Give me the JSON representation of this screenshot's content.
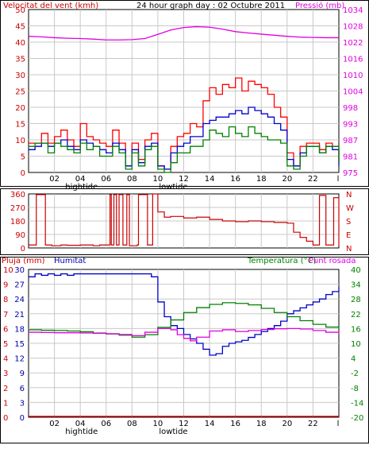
{
  "title": "24 hour graph day : 02 Octubre 2011",
  "colors": {
    "wind": "#dd0000",
    "wind_gust": "#ff0000",
    "wind_avg": "#0000cc",
    "wind_low": "#008000",
    "pressure": "#e000e0",
    "humidity": "#0000cc",
    "temperature": "#008000",
    "dewpoint": "#e000e0",
    "rain": "#cc0000",
    "direction": "#cc0000",
    "axis_text_left": "#cc0000",
    "axis_text_blue": "#0000aa",
    "grid": "#c8c8c8"
  },
  "x_ticks": [
    "02",
    "04",
    "06",
    "08",
    "10",
    "12",
    "14",
    "16",
    "18",
    "20",
    "22",
    "l"
  ],
  "tide_labels": [
    {
      "text": "hightide",
      "hour": 4.1
    },
    {
      "text": "lowtide",
      "hour": 11.2
    }
  ],
  "chart_data": [
    {
      "type": "line",
      "name": "wind-pressure",
      "title": "24 hour graph day : 02 Octubre 2011",
      "left_label": "Velocitat del vent (kmh)",
      "right_label": "Pressió (mb)",
      "xlim": [
        0,
        24
      ],
      "ylim_left": [
        0,
        50
      ],
      "ylim_right": [
        975,
        1034
      ],
      "left_ticks": [
        "0",
        "5",
        "10",
        "15",
        "20",
        "25",
        "30",
        "35",
        "40",
        "45",
        "50"
      ],
      "right_ticks": [
        "975",
        "981",
        "987",
        "993",
        "998",
        "1004",
        "1010",
        "1016",
        "1022",
        "1028",
        "1034"
      ],
      "series": [
        {
          "name": "gust",
          "axis": "left",
          "x": [
            0,
            0.5,
            1,
            1.5,
            2,
            2.5,
            3,
            3.5,
            4,
            4.5,
            5,
            5.5,
            6,
            6.5,
            7,
            7.5,
            8,
            8.5,
            9,
            9.5,
            10,
            10.5,
            11,
            11.5,
            12,
            12.5,
            13,
            13.5,
            14,
            14.5,
            15,
            15.5,
            16,
            16.5,
            17,
            17.5,
            18,
            18.5,
            19,
            19.5,
            20,
            20.5,
            21,
            21.5,
            22,
            22.5,
            23,
            23.5,
            24
          ],
          "y": [
            9,
            9,
            12,
            9,
            11,
            13,
            10,
            8,
            15,
            11,
            10,
            9,
            8,
            13,
            9,
            2,
            9,
            4,
            10,
            12,
            2,
            1,
            8,
            11,
            12,
            15,
            14,
            22,
            26,
            24,
            27,
            26,
            29,
            25,
            28,
            27,
            26,
            24,
            20,
            17,
            6,
            2,
            8,
            9,
            9,
            7,
            9,
            8,
            3
          ]
        },
        {
          "name": "average",
          "axis": "left",
          "x": [
            0,
            0.5,
            1,
            1.5,
            2,
            2.5,
            3,
            3.5,
            4,
            4.5,
            5,
            5.5,
            6,
            6.5,
            7,
            7.5,
            8,
            8.5,
            9,
            9.5,
            10,
            10.5,
            11,
            11.5,
            12,
            12.5,
            13,
            13.5,
            14,
            14.5,
            15,
            15.5,
            16,
            16.5,
            17,
            17.5,
            18,
            18.5,
            19,
            19.5,
            20,
            20.5,
            21,
            21.5,
            22,
            22.5,
            23,
            23.5,
            24
          ],
          "y": [
            7,
            8,
            9,
            8,
            9,
            10,
            8,
            7,
            10,
            9,
            8,
            7,
            6,
            9,
            7,
            2,
            7,
            3,
            8,
            9,
            2,
            1,
            6,
            8,
            9,
            11,
            11,
            15,
            16,
            17,
            17,
            18,
            19,
            18,
            20,
            19,
            18,
            17,
            15,
            13,
            4,
            2,
            6,
            8,
            8,
            6,
            8,
            7,
            2
          ]
        },
        {
          "name": "low",
          "axis": "left",
          "x": [
            0,
            0.5,
            1,
            1.5,
            2,
            2.5,
            3,
            3.5,
            4,
            4.5,
            5,
            5.5,
            6,
            6.5,
            7,
            7.5,
            8,
            8.5,
            9,
            9.5,
            10,
            10.5,
            11,
            11.5,
            12,
            12.5,
            13,
            13.5,
            14,
            14.5,
            15,
            15.5,
            16,
            16.5,
            17,
            17.5,
            18,
            18.5,
            19,
            19.5,
            20,
            20.5,
            21,
            21.5,
            22,
            22.5,
            23,
            23.5,
            24
          ],
          "y": [
            8,
            9,
            9,
            6,
            9,
            8,
            7,
            6,
            9,
            7,
            8,
            5,
            5,
            8,
            6,
            1,
            6,
            2,
            7,
            8,
            1,
            0,
            3,
            6,
            6,
            8,
            8,
            10,
            13,
            12,
            11,
            14,
            12,
            11,
            14,
            12,
            11,
            10,
            10,
            9,
            2,
            1,
            5,
            8,
            8,
            6,
            8,
            8,
            3
          ]
        },
        {
          "name": "pressure",
          "axis": "right",
          "x": [
            0,
            1,
            2,
            3,
            4,
            5,
            6,
            7,
            8,
            9,
            10,
            11,
            12,
            13,
            14,
            15,
            16,
            17,
            18,
            19,
            20,
            21,
            22,
            23,
            24
          ],
          "y": [
            1024.3,
            1024.1,
            1023.8,
            1023.6,
            1023.5,
            1023.3,
            1023,
            1023,
            1023.1,
            1023.5,
            1025,
            1026.6,
            1027.5,
            1027.8,
            1027.6,
            1026.9,
            1026,
            1025.5,
            1025.1,
            1024.7,
            1024.3,
            1024,
            1023.9,
            1023.8,
            1023.8
          ]
        }
      ]
    },
    {
      "type": "line",
      "name": "wind-direction",
      "left_ticks": [
        "0",
        "90",
        "180",
        "270",
        "360"
      ],
      "right_ticks": [
        "N",
        "E",
        "S",
        "W",
        "N"
      ],
      "ylim": [
        0,
        360
      ],
      "series": [
        {
          "name": "direction",
          "x": [
            0,
            0.5,
            0.6,
            1.2,
            1.3,
            1.8,
            2.5,
            3,
            4,
            5,
            5.5,
            6,
            6.3,
            6.4,
            6.6,
            6.8,
            7,
            7.3,
            7.5,
            7.6,
            7.8,
            8.4,
            8.5,
            8.8,
            9.2,
            9.5,
            9.6,
            10,
            10.5,
            11,
            12,
            13,
            14,
            15,
            16,
            17,
            18,
            19,
            20,
            20.5,
            21,
            21.5,
            22,
            22.3,
            22.5,
            22.8,
            23,
            23.4,
            23.6,
            24
          ],
          "y": [
            20,
            20,
            355,
            355,
            20,
            15,
            20,
            18,
            20,
            15,
            20,
            20,
            355,
            20,
            355,
            20,
            355,
            20,
            20,
            355,
            15,
            20,
            355,
            355,
            20,
            20,
            360,
            240,
            205,
            210,
            200,
            205,
            190,
            180,
            175,
            180,
            175,
            170,
            165,
            105,
            70,
            45,
            20,
            20,
            350,
            350,
            20,
            20,
            335,
            15
          ]
        }
      ]
    },
    {
      "type": "line",
      "name": "humidity-temperature",
      "left_label_rain": "Pluja (mm)",
      "left_label_humidity": "Humitat",
      "right_label_temp": "Temperatura (°C)",
      "right_label_dew": "Punt rosada",
      "rain_ticks": [
        "0",
        "1",
        "2",
        "3",
        "4",
        "5",
        "6",
        "7",
        "8",
        "9",
        "10"
      ],
      "humidity_ticks": [
        "0",
        "3",
        "6",
        "9",
        "12",
        "15",
        "18",
        "21",
        "24",
        "27",
        "30"
      ],
      "temp_ticks": [
        "-20",
        "-14",
        "-8",
        "-2",
        "4",
        "10",
        "16",
        "22",
        "28",
        "34",
        "40"
      ],
      "ylim_humidity": [
        0,
        100
      ],
      "ylim_temp": [
        -20,
        40
      ],
      "series": [
        {
          "name": "humidity",
          "axis": "left",
          "x": [
            0,
            0.5,
            1,
            1.5,
            2,
            2.5,
            3,
            3.5,
            4,
            5,
            6,
            7,
            8,
            9,
            9.5,
            10,
            10.5,
            11,
            11.5,
            12,
            12.5,
            13,
            13.5,
            14,
            14.5,
            15,
            15.5,
            16,
            16.5,
            17,
            17.5,
            18,
            18.5,
            19,
            19.5,
            20,
            20.5,
            21,
            21.5,
            22,
            22.5,
            23,
            23.5,
            24
          ],
          "y": [
            95,
            97,
            96,
            97,
            96,
            97,
            96,
            97,
            97,
            97,
            97,
            97,
            97,
            97,
            95,
            78,
            68,
            62,
            60,
            56,
            53,
            50,
            46,
            42,
            43,
            48,
            50,
            51,
            52,
            54,
            56,
            58,
            60,
            62,
            65,
            70,
            72,
            74,
            76,
            78,
            80,
            83,
            85,
            88
          ]
        },
        {
          "name": "temperature",
          "axis": "right",
          "x": [
            0,
            1,
            2,
            3,
            4,
            5,
            6,
            7,
            8,
            9,
            10,
            11,
            12,
            13,
            14,
            15,
            16,
            17,
            18,
            19,
            20,
            21,
            22,
            23,
            24
          ],
          "y": [
            15.5,
            15.3,
            15.2,
            15,
            14.7,
            14.2,
            13.8,
            13.3,
            12.5,
            13.5,
            16.5,
            19.5,
            22.5,
            24.5,
            25.8,
            26.5,
            26.2,
            25.6,
            24.2,
            22.5,
            20.8,
            19.2,
            17.7,
            16.6,
            15.8
          ]
        },
        {
          "name": "dewpoint",
          "axis": "right",
          "x": [
            0,
            1,
            2,
            3,
            4,
            5,
            6,
            7,
            8,
            9,
            10,
            11,
            11.5,
            12,
            12.5,
            13,
            14,
            15,
            16,
            17,
            18,
            19,
            20,
            21,
            22,
            23,
            24
          ],
          "y": [
            14.5,
            14.4,
            14.3,
            14.3,
            14.2,
            14.1,
            13.9,
            13.6,
            13.1,
            14.5,
            16,
            15.5,
            13.5,
            12,
            11,
            12.5,
            15,
            15.5,
            14.8,
            15.2,
            15.6,
            15.9,
            16,
            15.8,
            15.2,
            14.5,
            14
          ]
        },
        {
          "name": "rain",
          "axis": "rain",
          "x": [
            0,
            24
          ],
          "y": [
            0,
            0
          ]
        }
      ]
    }
  ]
}
